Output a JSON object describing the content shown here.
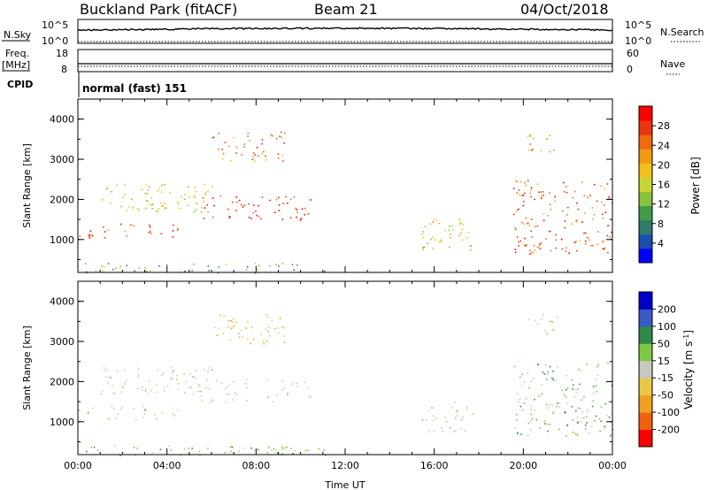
{
  "header": {
    "site": "Buckland Park (fitACF)",
    "beam": "Beam 21",
    "date": "04/Oct/2018"
  },
  "aux_panels": {
    "nsky_label": "N.Sky",
    "nsearch_label": "N.Search",
    "nsky_ticks": [
      "10^5",
      "10^0"
    ],
    "nsearch_ticks": [
      "10^5",
      "10^0"
    ],
    "freq_label": "Freq.",
    "freq_unit": "[MHz]",
    "freq_ticks": [
      "18",
      "8"
    ],
    "nave_label": "Nave",
    "nave_ticks": [
      "60",
      "0"
    ],
    "cpid_label": "CPID",
    "cpid_value": "normal (fast) 151"
  },
  "chart_data": [
    {
      "type": "heatmap",
      "name": "power",
      "ylabel": "Slant Range [km]",
      "xlabel": "",
      "yticks": [
        "1000",
        "2000",
        "3000",
        "4000"
      ],
      "ylim": [
        180,
        4500
      ],
      "xlim": [
        0,
        24
      ],
      "colorbar": {
        "label": "Power [dB]",
        "ticks": [
          "4",
          "8",
          "12",
          "16",
          "20",
          "24",
          "28"
        ],
        "range": [
          0,
          32
        ],
        "colors": [
          "#0000ff",
          "#1a4fb0",
          "#2f7a6a",
          "#3f9a4a",
          "#88c23a",
          "#c9d332",
          "#f2c01c",
          "#f39a12",
          "#f06a10",
          "#e8350e",
          "#ff0000"
        ]
      },
      "echo_regions": [
        {
          "t0": 0.3,
          "t1": 11.2,
          "r0": 180,
          "r1": 420,
          "level": 0.35,
          "note": "ground scatter floor"
        },
        {
          "t0": 0.0,
          "t1": 4.5,
          "r0": 1050,
          "r1": 1400,
          "level": 0.85
        },
        {
          "t0": 1.0,
          "t1": 6.0,
          "r0": 1700,
          "r1": 2400,
          "level": 0.55
        },
        {
          "t0": 5.5,
          "t1": 10.5,
          "r0": 1500,
          "r1": 2100,
          "level": 0.9
        },
        {
          "t0": 6.0,
          "t1": 9.3,
          "r0": 2950,
          "r1": 3700,
          "level": 0.75
        },
        {
          "t0": 15.4,
          "t1": 17.8,
          "r0": 750,
          "r1": 1550,
          "level": 0.6
        },
        {
          "t0": 19.5,
          "t1": 24.0,
          "r0": 650,
          "r1": 2500,
          "level": 0.8
        },
        {
          "t0": 20.0,
          "t1": 21.5,
          "r0": 3200,
          "r1": 3700,
          "level": 0.6
        }
      ]
    },
    {
      "type": "heatmap",
      "name": "velocity",
      "ylabel": "Slant Range [km]",
      "xlabel": "Time UT",
      "xticks": [
        "00:00",
        "04:00",
        "08:00",
        "12:00",
        "16:00",
        "20:00",
        "00:00"
      ],
      "yticks": [
        "1000",
        "2000",
        "3000",
        "4000"
      ],
      "ylim": [
        180,
        4500
      ],
      "xlim": [
        0,
        24
      ],
      "colorbar": {
        "label": "Velocity [m s^-1]",
        "ticks": [
          "200",
          "100",
          "50",
          "15",
          "-15",
          "-50",
          "-100",
          "-200"
        ],
        "colors": [
          "#0000c8",
          "#3a5ac8",
          "#2f8a4a",
          "#7cc843",
          "#c8c8c0",
          "#e8c845",
          "#f0a020",
          "#f06010",
          "#ff0000"
        ]
      }
    }
  ]
}
